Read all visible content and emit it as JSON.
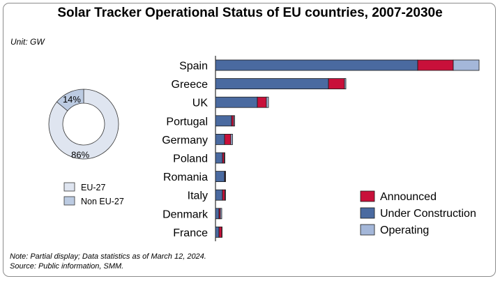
{
  "title": "Solar Tracker Operational Status of EU countries, 2007-2030e",
  "unit": "Unit:  GW",
  "notes": {
    "line1": "Note: Partial display; Data statistics as of March 12, 2024.",
    "line2": "Source: Public information, SMM."
  },
  "colors": {
    "announced": "#c8103a",
    "under_construction": "#4a6aa0",
    "operating": "#a4b7d9",
    "eu27": "#dfe5f0",
    "non_eu27": "#bccbe2"
  },
  "chart_data": [
    {
      "type": "bar",
      "orientation": "horizontal",
      "stacked": true,
      "categories": [
        "Spain",
        "Greece",
        "UK",
        "Portugal",
        "Germany",
        "Poland",
        "Romania",
        "Italy",
        "Denmark",
        "France"
      ],
      "series": [
        {
          "name": "Under Construction",
          "values": [
            29.0,
            16.2,
            6.0,
            2.3,
            1.3,
            1.0,
            1.3,
            1.0,
            0.5,
            0.5
          ]
        },
        {
          "name": "Announced",
          "values": [
            5.1,
            2.3,
            1.3,
            0.3,
            0.9,
            0.25,
            0.1,
            0.35,
            0.2,
            0.4
          ]
        },
        {
          "name": "Operating",
          "values": [
            3.7,
            0.2,
            0.3,
            0.15,
            0.25,
            0.1,
            0.05,
            0.1,
            0.2,
            0.05
          ]
        }
      ],
      "legend": [
        "Announced",
        "Under Construction",
        "Operating"
      ],
      "legend_position": "bottom-right",
      "grid": false
    },
    {
      "type": "pie",
      "donut": true,
      "labels": [
        "EU-27",
        "Non EU-27"
      ],
      "values": [
        86,
        14
      ],
      "value_labels": [
        "86%",
        "14%"
      ],
      "legend": [
        "EU-27",
        "Non EU-27"
      ],
      "legend_position": "bottom"
    }
  ]
}
